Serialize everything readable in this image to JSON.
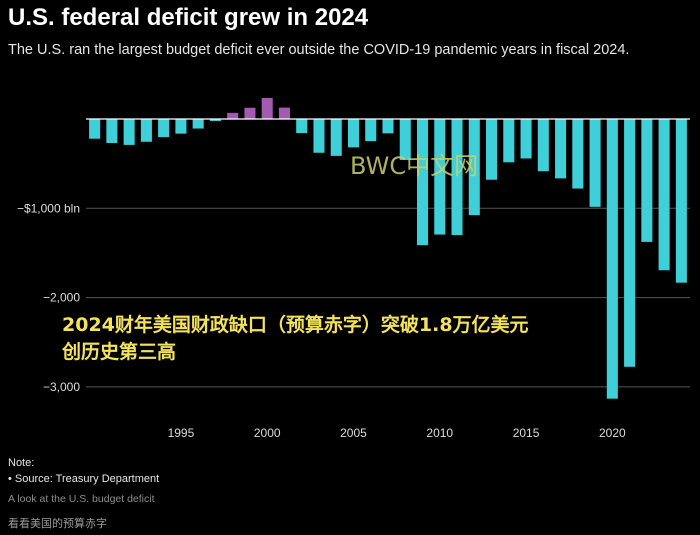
{
  "header": {
    "title": "U.S. federal deficit grew in 2024",
    "subtitle": "The U.S. ran the largest budget deficit ever outside the COVID-19 pandemic years in fiscal 2024."
  },
  "overlay_text": {
    "line1": "2024财年美国财政缺口（预算赤字）突破1.8万亿美元",
    "line2": "创历史第三高"
  },
  "watermark": "BWC中文网",
  "footer": {
    "note_label": "Note:",
    "note_source": "• Source: Treasury Department",
    "caption": "A look at the U.S. budget deficit",
    "bottom_caption": "看看美国的预算赤字"
  },
  "colors": {
    "deficit": "#3ecfd9",
    "surplus": "#a35bb0",
    "gridline": "#555555",
    "zero_line": "#ffffff",
    "background": "#000000"
  },
  "chart_data": {
    "type": "bar",
    "title": "U.S. federal deficit grew in 2024",
    "xlabel": "",
    "ylabel": "",
    "unit": "bln",
    "x": [
      1990,
      1991,
      1992,
      1993,
      1994,
      1995,
      1996,
      1997,
      1998,
      1999,
      2000,
      2001,
      2002,
      2003,
      2004,
      2005,
      2006,
      2007,
      2008,
      2009,
      2010,
      2011,
      2012,
      2013,
      2014,
      2015,
      2016,
      2017,
      2018,
      2019,
      2020,
      2021,
      2022,
      2023,
      2024
    ],
    "values": [
      -221,
      -269,
      -290,
      -255,
      -203,
      -164,
      -107,
      -22,
      69,
      126,
      236,
      128,
      -158,
      -378,
      -413,
      -318,
      -248,
      -161,
      -459,
      -1413,
      -1294,
      -1300,
      -1077,
      -680,
      -485,
      -442,
      -585,
      -665,
      -779,
      -984,
      -3132,
      -2775,
      -1376,
      -1694,
      -1833
    ],
    "x_ticks": [
      1995,
      2000,
      2005,
      2010,
      2015,
      2020
    ],
    "x_tick_labels": [
      "1995",
      "2000",
      "2005",
      "2010",
      "2015",
      "2020"
    ],
    "y_ticks": [
      -1000,
      -2000,
      -3000
    ],
    "y_tick_labels": [
      "−$1,000 bln",
      "−2,000",
      "−3,000"
    ],
    "ylim": [
      -3300,
      300
    ],
    "grid": true,
    "legend": "none"
  }
}
